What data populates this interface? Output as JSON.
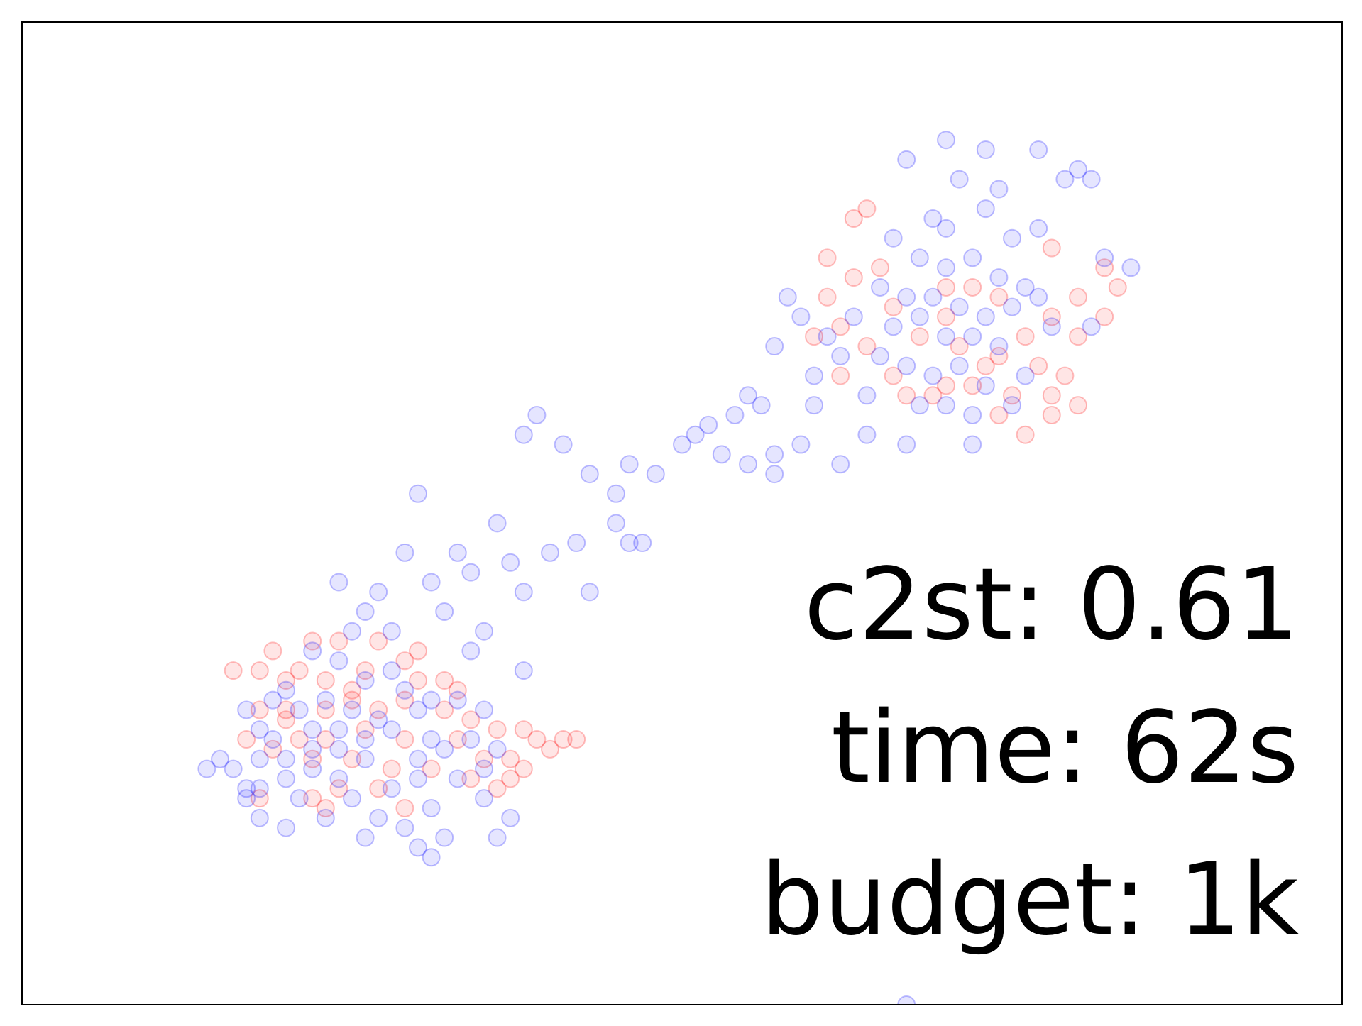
{
  "chart_data": {
    "type": "scatter",
    "xlim": [
      0,
      100
    ],
    "ylim": [
      0,
      100
    ],
    "annotations": [
      "c2st: 0.61",
      "time: 62s",
      "budget: 1k"
    ],
    "series": [
      {
        "color": "#ff0000",
        "points": [
          [
            64,
            81
          ],
          [
            63,
            80
          ],
          [
            61,
            76
          ],
          [
            63,
            74
          ],
          [
            61,
            72
          ],
          [
            65,
            75
          ],
          [
            70,
            73
          ],
          [
            72,
            73
          ],
          [
            74,
            72
          ],
          [
            78,
            70
          ],
          [
            80,
            68
          ],
          [
            82,
            70
          ],
          [
            80,
            72
          ],
          [
            76,
            68
          ],
          [
            73,
            65
          ],
          [
            74,
            66
          ],
          [
            77,
            65
          ],
          [
            70,
            63
          ],
          [
            66,
            64
          ],
          [
            64,
            67
          ],
          [
            62,
            69
          ],
          [
            75,
            62
          ],
          [
            78,
            62
          ],
          [
            79,
            64
          ],
          [
            78,
            60
          ],
          [
            74,
            60
          ],
          [
            69,
            62
          ],
          [
            67,
            62
          ],
          [
            71,
            67
          ],
          [
            68,
            68
          ],
          [
            66,
            71
          ],
          [
            70,
            70
          ],
          [
            78,
            77
          ],
          [
            82,
            75
          ],
          [
            83,
            73
          ],
          [
            80,
            61
          ],
          [
            60,
            68
          ],
          [
            62,
            64
          ],
          [
            76,
            58
          ],
          [
            72,
            63
          ],
          [
            21,
            34
          ],
          [
            19,
            36
          ],
          [
            22,
            37
          ],
          [
            24,
            37
          ],
          [
            27,
            37
          ],
          [
            30,
            36
          ],
          [
            32,
            33
          ],
          [
            29,
            35
          ],
          [
            26,
            34
          ],
          [
            23,
            33
          ],
          [
            20,
            33
          ],
          [
            18,
            34
          ],
          [
            16,
            34
          ],
          [
            18,
            30
          ],
          [
            20,
            30
          ],
          [
            23,
            30
          ],
          [
            25,
            31
          ],
          [
            27,
            30
          ],
          [
            29,
            31
          ],
          [
            32,
            30
          ],
          [
            34,
            29
          ],
          [
            36,
            28
          ],
          [
            38,
            28
          ],
          [
            39,
            27
          ],
          [
            41,
            27
          ],
          [
            42,
            27
          ],
          [
            40,
            26
          ],
          [
            37,
            25
          ],
          [
            35,
            25
          ],
          [
            33,
            27
          ],
          [
            29,
            27
          ],
          [
            26,
            28
          ],
          [
            23,
            27
          ],
          [
            21,
            27
          ],
          [
            19,
            26
          ],
          [
            17,
            27
          ],
          [
            22,
            25
          ],
          [
            25,
            25
          ],
          [
            28,
            24
          ],
          [
            31,
            24
          ],
          [
            34,
            23
          ],
          [
            37,
            23
          ],
          [
            38,
            24
          ],
          [
            24,
            22
          ],
          [
            27,
            22
          ],
          [
            22,
            21
          ],
          [
            29,
            20
          ],
          [
            36,
            22
          ],
          [
            18,
            21
          ],
          [
            23,
            20
          ],
          [
            20,
            29
          ],
          [
            25,
            32
          ],
          [
            30,
            33
          ],
          [
            33,
            32
          ]
        ]
      },
      {
        "color": "#0000ff",
        "points": [
          [
            70,
            88
          ],
          [
            73,
            87
          ],
          [
            67,
            86
          ],
          [
            71,
            84
          ],
          [
            74,
            83
          ],
          [
            80,
            85
          ],
          [
            79,
            84
          ],
          [
            73,
            81
          ],
          [
            69,
            80
          ],
          [
            66,
            78
          ],
          [
            70,
            79
          ],
          [
            75,
            78
          ],
          [
            77,
            79
          ],
          [
            68,
            76
          ],
          [
            70,
            75
          ],
          [
            72,
            76
          ],
          [
            74,
            74
          ],
          [
            76,
            73
          ],
          [
            65,
            73
          ],
          [
            67,
            72
          ],
          [
            69,
            72
          ],
          [
            71,
            71
          ],
          [
            73,
            70
          ],
          [
            75,
            71
          ],
          [
            77,
            72
          ],
          [
            63,
            70
          ],
          [
            66,
            69
          ],
          [
            68,
            70
          ],
          [
            70,
            68
          ],
          [
            72,
            68
          ],
          [
            74,
            67
          ],
          [
            78,
            69
          ],
          [
            81,
            69
          ],
          [
            62,
            66
          ],
          [
            65,
            66
          ],
          [
            67,
            65
          ],
          [
            69,
            64
          ],
          [
            71,
            65
          ],
          [
            73,
            63
          ],
          [
            76,
            64
          ],
          [
            64,
            62
          ],
          [
            68,
            61
          ],
          [
            70,
            61
          ],
          [
            72,
            60
          ],
          [
            75,
            61
          ],
          [
            60,
            64
          ],
          [
            61,
            68
          ],
          [
            58,
            72
          ],
          [
            59,
            70
          ],
          [
            57,
            67
          ],
          [
            84,
            75
          ],
          [
            82,
            76
          ],
          [
            67,
            57
          ],
          [
            72,
            57
          ],
          [
            64,
            58
          ],
          [
            60,
            61
          ],
          [
            56,
            61
          ],
          [
            55,
            62
          ],
          [
            77,
            87
          ],
          [
            81,
            84
          ],
          [
            54,
            60
          ],
          [
            52,
            59
          ],
          [
            57,
            56
          ],
          [
            59,
            57
          ],
          [
            55,
            55
          ],
          [
            53,
            56
          ],
          [
            51,
            58
          ],
          [
            57,
            54
          ],
          [
            62,
            55
          ],
          [
            48,
            54
          ],
          [
            46,
            55
          ],
          [
            50,
            57
          ],
          [
            47,
            47
          ],
          [
            45,
            52
          ],
          [
            41,
            57
          ],
          [
            43,
            54
          ],
          [
            39,
            60
          ],
          [
            38,
            58
          ],
          [
            45,
            49
          ],
          [
            46,
            47
          ],
          [
            42,
            47
          ],
          [
            40,
            46
          ],
          [
            36,
            49
          ],
          [
            37,
            45
          ],
          [
            30,
            52
          ],
          [
            33,
            46
          ],
          [
            34,
            44
          ],
          [
            31,
            43
          ],
          [
            29,
            46
          ],
          [
            27,
            42
          ],
          [
            24,
            43
          ],
          [
            26,
            40
          ],
          [
            32,
            40
          ],
          [
            43,
            42
          ],
          [
            38,
            42
          ],
          [
            35,
            38
          ],
          [
            34,
            36
          ],
          [
            28,
            38
          ],
          [
            38,
            34
          ],
          [
            25,
            38
          ],
          [
            22,
            36
          ],
          [
            28,
            34
          ],
          [
            26,
            33
          ],
          [
            24,
            35
          ],
          [
            29,
            32
          ],
          [
            23,
            31
          ],
          [
            20,
            32
          ],
          [
            31,
            31
          ],
          [
            33,
            31
          ],
          [
            35,
            30
          ],
          [
            30,
            30
          ],
          [
            27,
            29
          ],
          [
            25,
            30
          ],
          [
            21,
            30
          ],
          [
            19,
            31
          ],
          [
            18,
            28
          ],
          [
            22,
            28
          ],
          [
            24,
            28
          ],
          [
            28,
            28
          ],
          [
            31,
            27
          ],
          [
            34,
            27
          ],
          [
            36,
            26
          ],
          [
            32,
            26
          ],
          [
            30,
            25
          ],
          [
            26,
            25
          ],
          [
            22,
            26
          ],
          [
            20,
            25
          ],
          [
            19,
            27
          ],
          [
            17,
            30
          ],
          [
            20,
            23
          ],
          [
            24,
            23
          ],
          [
            28,
            22
          ],
          [
            30,
            23
          ],
          [
            33,
            23
          ],
          [
            35,
            24
          ],
          [
            25,
            21
          ],
          [
            21,
            21
          ],
          [
            18,
            22
          ],
          [
            23,
            19
          ],
          [
            27,
            19
          ],
          [
            31,
            20
          ],
          [
            35,
            21
          ],
          [
            37,
            19
          ],
          [
            36,
            17
          ],
          [
            30,
            16
          ],
          [
            32,
            17
          ],
          [
            16,
            24
          ],
          [
            14,
            24
          ],
          [
            20,
            18
          ],
          [
            18,
            19
          ],
          [
            31,
            15
          ],
          [
            29,
            18
          ],
          [
            26,
            17
          ],
          [
            17,
            22
          ],
          [
            18,
            25
          ],
          [
            24,
            26
          ],
          [
            26,
            27
          ],
          [
            15,
            25
          ],
          [
            22,
            24
          ],
          [
            17,
            21
          ],
          [
            67,
            0
          ]
        ]
      }
    ]
  }
}
